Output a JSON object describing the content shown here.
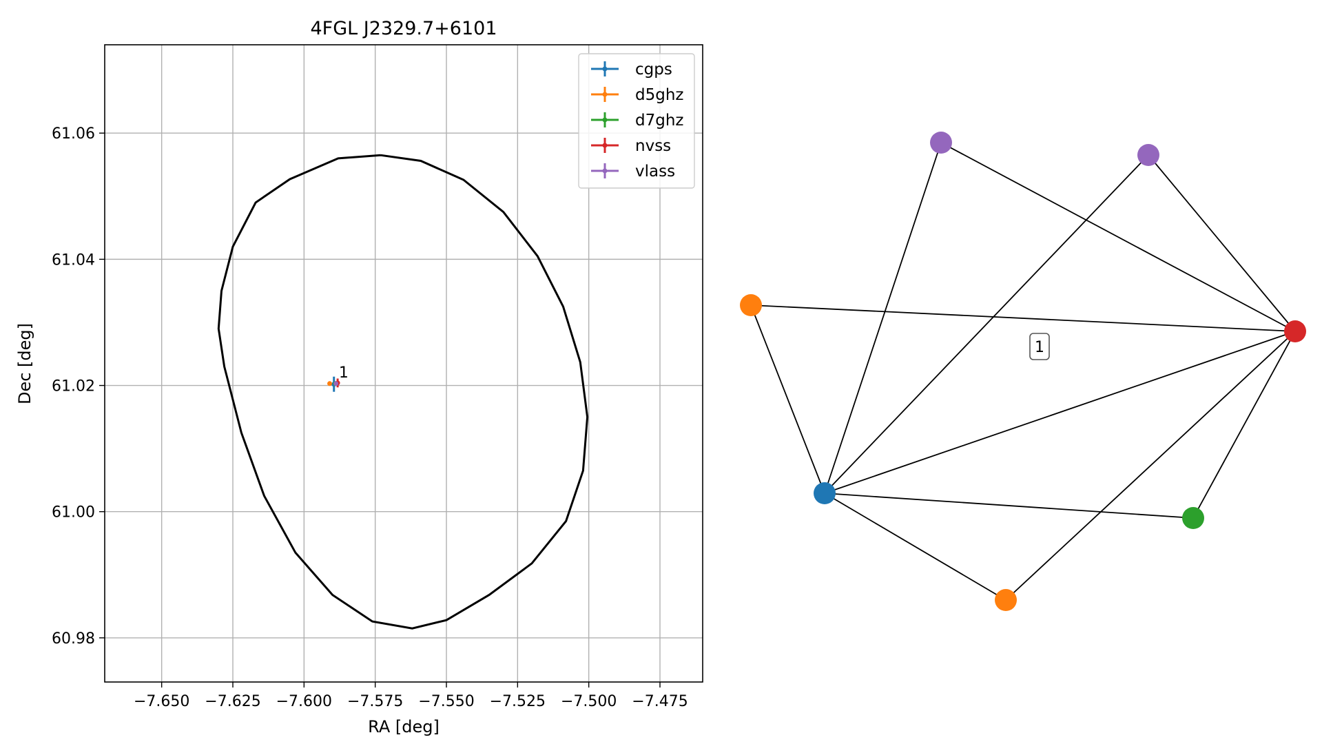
{
  "chart_data": [
    {
      "type": "scatter",
      "title": "4FGL J2329.7+6101",
      "xlabel": "RA [deg]",
      "ylabel": "Dec [deg]",
      "xlim": [
        -7.67,
        -7.46
      ],
      "ylim": [
        60.973,
        61.074
      ],
      "xticks": [
        -7.65,
        -7.625,
        -7.6,
        -7.575,
        -7.55,
        -7.525,
        -7.5,
        -7.475
      ],
      "xtick_labels": [
        "−7.650",
        "−7.625",
        "−7.600",
        "−7.575",
        "−7.550",
        "−7.525",
        "−7.500",
        "−7.475"
      ],
      "yticks": [
        60.98,
        61.0,
        61.02,
        61.04,
        61.06
      ],
      "ytick_labels": [
        "60.98",
        "61.00",
        "61.02",
        "61.04",
        "61.06"
      ],
      "grid": true,
      "legend_position": "top-right",
      "series": [
        {
          "name": "cgps",
          "color": "#1f77b4",
          "x": -7.5895,
          "y": 61.0202,
          "xerr": 0.0009,
          "yerr": 0.0012
        },
        {
          "name": "d5ghz",
          "color": "#ff7f0e",
          "x": -7.591,
          "y": 61.0203,
          "xerr": 0.0005,
          "yerr": 0.0003
        },
        {
          "name": "d7ghz",
          "color": "#2ca02c",
          "x": -7.589,
          "y": 61.0203,
          "xerr": 0.0004,
          "yerr": 0.0003
        },
        {
          "name": "nvss",
          "color": "#d62728",
          "x": -7.5882,
          "y": 61.0204,
          "xerr": 0.0007,
          "yerr": 0.0007
        },
        {
          "name": "vlass",
          "color": "#9467bd",
          "x": -7.5888,
          "y": 61.0203,
          "xerr": 0.0003,
          "yerr": 0.0002
        }
      ],
      "annotations": [
        {
          "text": "1",
          "x": -7.5885,
          "y": 61.0208
        }
      ],
      "ellipse": {
        "color": "#000000",
        "points": [
          [
            -7.573,
            61.0565
          ],
          [
            -7.559,
            61.0556
          ],
          [
            -7.544,
            61.0526
          ],
          [
            -7.53,
            61.0475
          ],
          [
            -7.518,
            61.0405
          ],
          [
            -7.509,
            61.0325
          ],
          [
            -7.503,
            61.0237
          ],
          [
            -7.5005,
            61.015
          ],
          [
            -7.502,
            61.0065
          ],
          [
            -7.508,
            60.9985
          ],
          [
            -7.52,
            60.9918
          ],
          [
            -7.535,
            60.9868
          ],
          [
            -7.55,
            60.9828
          ],
          [
            -7.562,
            60.9815
          ],
          [
            -7.576,
            60.9826
          ],
          [
            -7.59,
            60.9868
          ],
          [
            -7.603,
            60.9935
          ],
          [
            -7.614,
            61.0025
          ],
          [
            -7.622,
            61.0125
          ],
          [
            -7.628,
            61.023
          ],
          [
            -7.63,
            61.029
          ],
          [
            -7.629,
            61.035
          ],
          [
            -7.625,
            61.042
          ],
          [
            -7.617,
            61.049
          ],
          [
            -7.605,
            61.0527
          ],
          [
            -7.588,
            61.056
          ],
          [
            -7.573,
            61.0565
          ]
        ]
      }
    },
    {
      "type": "network",
      "nodes": [
        {
          "id": "cgps_1",
          "color": "#1f77b4"
        },
        {
          "id": "d5ghz_1",
          "color": "#ff7f0e"
        },
        {
          "id": "d5ghz_2",
          "color": "#ff7f0e"
        },
        {
          "id": "d7ghz_1",
          "color": "#2ca02c"
        },
        {
          "id": "nvss_1",
          "color": "#d62728"
        },
        {
          "id": "vlass_1",
          "color": "#9467bd"
        },
        {
          "id": "vlass_2",
          "color": "#9467bd"
        }
      ],
      "edges": [
        [
          "cgps_1",
          "d5ghz_1"
        ],
        [
          "cgps_1",
          "vlass_1"
        ],
        [
          "cgps_1",
          "vlass_2"
        ],
        [
          "cgps_1",
          "nvss_1"
        ],
        [
          "cgps_1",
          "d7ghz_1"
        ],
        [
          "cgps_1",
          "d5ghz_2"
        ],
        [
          "d5ghz_1",
          "nvss_1"
        ],
        [
          "vlass_1",
          "nvss_1"
        ],
        [
          "vlass_2",
          "nvss_1"
        ],
        [
          "nvss_1",
          "d7ghz_1"
        ],
        [
          "nvss_1",
          "d5ghz_2"
        ]
      ],
      "labels": [
        {
          "text": "1"
        }
      ]
    }
  ]
}
